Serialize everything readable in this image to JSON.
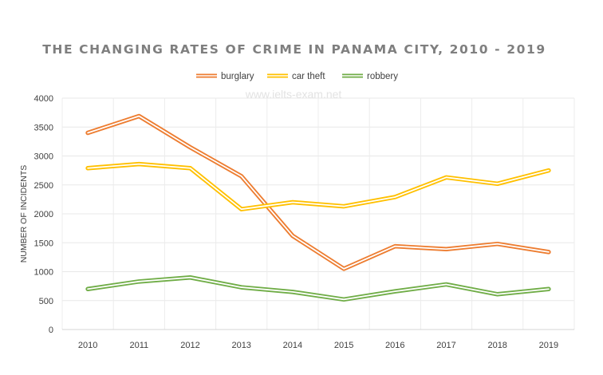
{
  "chart_data": {
    "type": "line",
    "title": "THE CHANGING RATES OF CRIME IN PANAMA CITY, 2010 - 2019",
    "watermark": "www.ielts-exam.net",
    "ylabel": "NUMBER OF INCIDENTS",
    "xlabel": "",
    "x": [
      2010,
      2011,
      2012,
      2013,
      2014,
      2015,
      2016,
      2017,
      2018,
      2019
    ],
    "x_labels": [
      "2010",
      "2011",
      "2012",
      "2013",
      "2014",
      "2015",
      "2016",
      "2017",
      "2018",
      "2019"
    ],
    "ylim": [
      0,
      4000
    ],
    "y_ticks": [
      0,
      500,
      1000,
      1500,
      2000,
      2500,
      3000,
      3500,
      4000
    ],
    "y_tick_labels": [
      "0",
      "500",
      "1000",
      "1500",
      "2000",
      "2500",
      "3000",
      "3500",
      "4000"
    ],
    "grid": true,
    "legend_position": "top",
    "series": [
      {
        "name": "burglary",
        "color": "#ed7d31",
        "values": [
          3400,
          3690,
          3150,
          2650,
          1620,
          1050,
          1440,
          1390,
          1480,
          1340
        ]
      },
      {
        "name": "car theft",
        "color": "#ffc000",
        "values": [
          2790,
          2860,
          2790,
          2080,
          2200,
          2130,
          2290,
          2630,
          2520,
          2750
        ]
      },
      {
        "name": "robbery",
        "color": "#70ad47",
        "values": [
          700,
          830,
          900,
          730,
          650,
          520,
          660,
          780,
          610,
          700
        ]
      }
    ]
  }
}
